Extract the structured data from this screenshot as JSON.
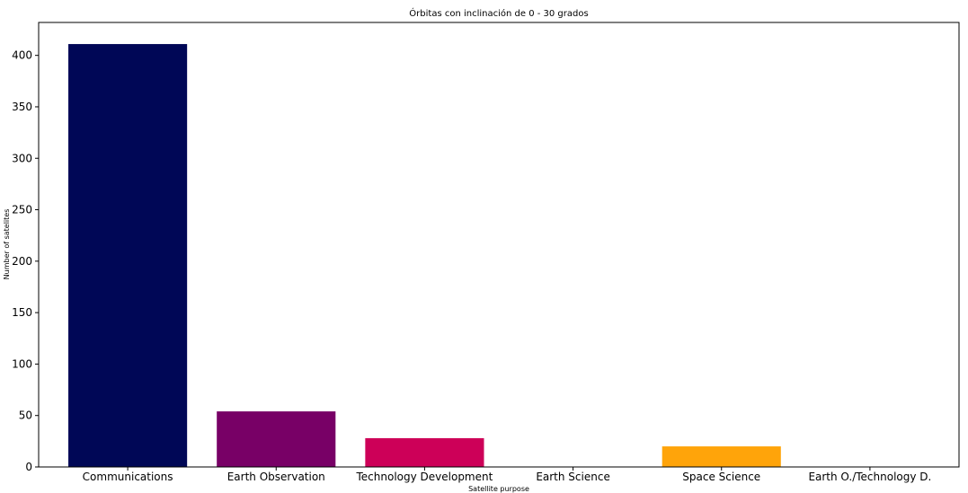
{
  "chart_data": {
    "type": "bar",
    "title": "Órbitas con inclinación de 0 - 30 grados",
    "xlabel": "Satellite purpose",
    "ylabel": "Number of satelites",
    "categories": [
      "Communications",
      "Earth Observation",
      "Technology Development",
      "Earth Science",
      "Space Science",
      "Earth O./Technology D."
    ],
    "values": [
      411,
      54,
      28,
      0,
      20,
      0
    ],
    "bar_colors": [
      "#000756",
      "#780066",
      "#cd0058",
      "#ff4a3a",
      "#ffa40a",
      "#f9e000"
    ],
    "ylim": [
      0,
      432
    ],
    "yticks": [
      0,
      50,
      100,
      150,
      200,
      250,
      300,
      350,
      400
    ],
    "grid": false,
    "legend": null
  }
}
